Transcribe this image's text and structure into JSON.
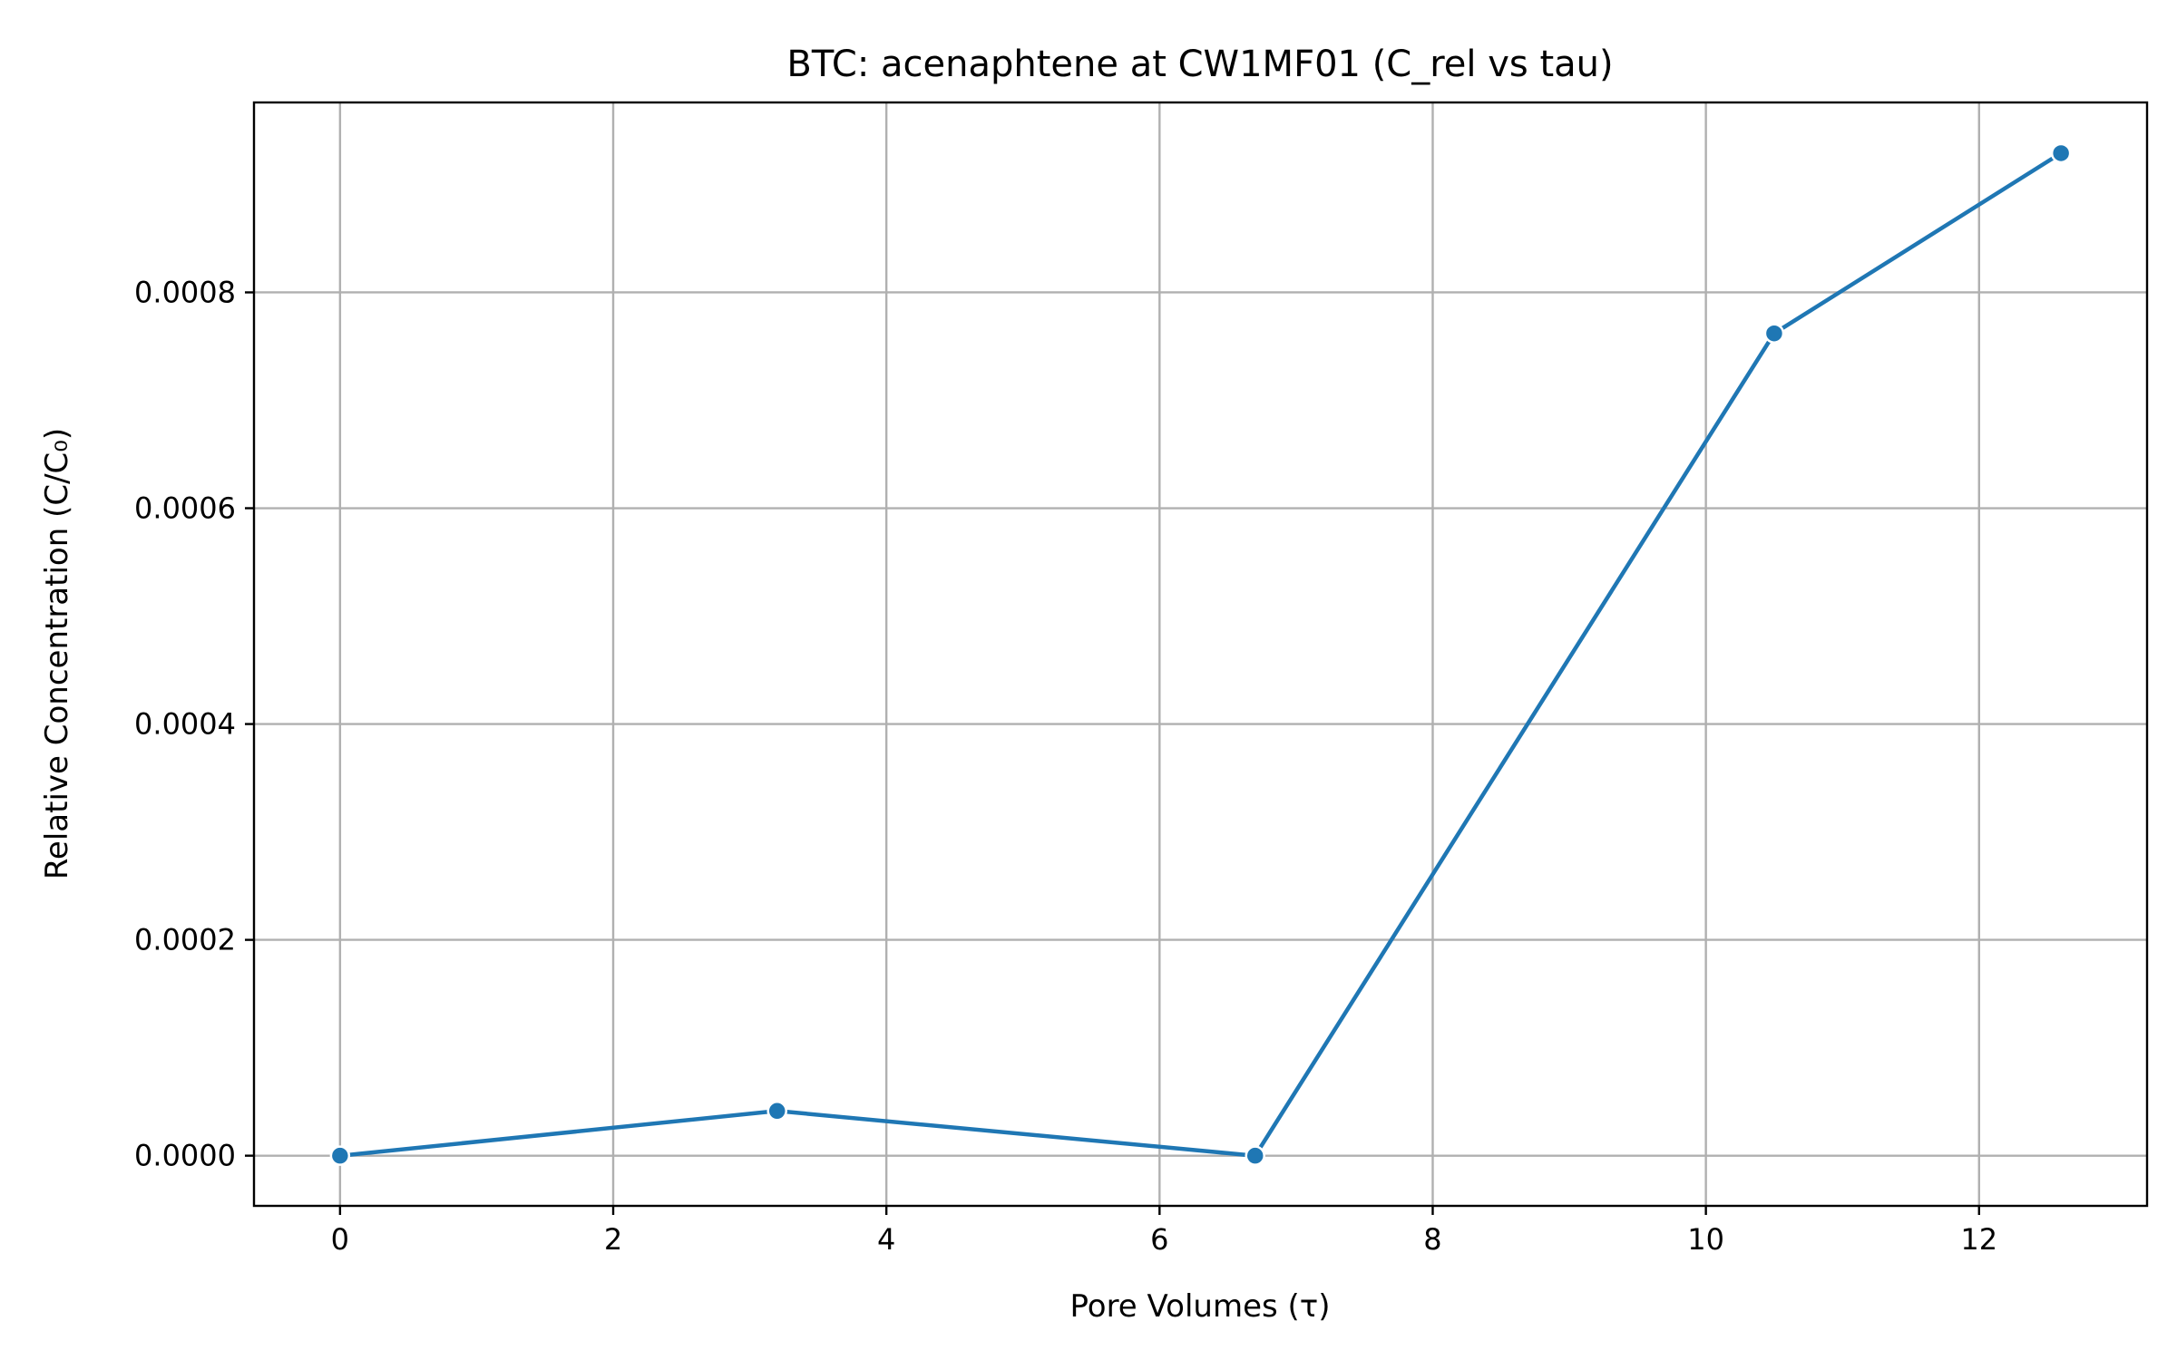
{
  "chart_data": {
    "type": "line",
    "title": "BTC: acenaphtene at CW1MF01 (C_rel vs tau)",
    "xlabel": "Pore Volumes (τ)",
    "ylabel": "Relative Concentration (C/C₀)",
    "xlim": [
      -0.63,
      13.23
    ],
    "ylim": [
      -4.65e-05,
      0.000976
    ],
    "xticks": [
      0,
      2,
      4,
      6,
      8,
      10,
      12
    ],
    "xtick_labels": [
      "0",
      "2",
      "4",
      "6",
      "8",
      "10",
      "12"
    ],
    "yticks": [
      0,
      0.0002,
      0.0004,
      0.0006,
      0.0008
    ],
    "ytick_labels": [
      "0.0000",
      "0.0002",
      "0.0004",
      "0.0006",
      "0.0008"
    ],
    "grid": true,
    "series": [
      {
        "color": "#1f77b4",
        "marker": "circle",
        "x": [
          0,
          3.2,
          6.7,
          10.5,
          12.6
        ],
        "y": [
          0.0,
          4.15e-05,
          0.0,
          0.000762,
          0.000929
        ]
      }
    ]
  }
}
